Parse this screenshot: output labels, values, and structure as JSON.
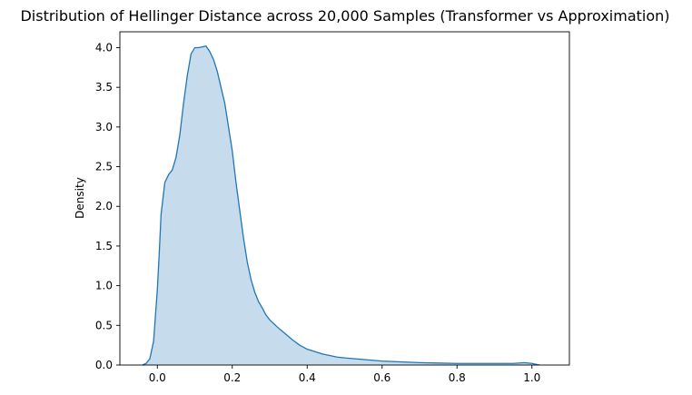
{
  "chart_data": {
    "type": "area",
    "title": "Distribution of Hellinger Distance across 20,000 Samples (Transformer vs Approximation)",
    "xlabel": "",
    "ylabel": "Density",
    "xlim": [
      -0.1,
      1.1
    ],
    "ylim": [
      0,
      4.2
    ],
    "x_ticks": [
      "0.0",
      "0.2",
      "0.4",
      "0.6",
      "0.8",
      "1.0"
    ],
    "y_ticks": [
      "0.0",
      "0.5",
      "1.0",
      "1.5",
      "2.0",
      "2.5",
      "3.0",
      "3.5",
      "4.0"
    ],
    "grid": false,
    "legend": "none",
    "colors": {
      "line": "#1f77b4",
      "fill": "#c6dbec"
    },
    "series": [
      {
        "x": [
          -0.04,
          -0.03,
          -0.02,
          -0.01,
          0.0,
          0.005,
          0.01,
          0.02,
          0.03,
          0.04,
          0.05,
          0.06,
          0.07,
          0.08,
          0.09,
          0.1,
          0.11,
          0.12,
          0.13,
          0.14,
          0.15,
          0.16,
          0.17,
          0.18,
          0.19,
          0.2,
          0.21,
          0.22,
          0.23,
          0.24,
          0.25,
          0.26,
          0.27,
          0.28,
          0.29,
          0.3,
          0.32,
          0.34,
          0.36,
          0.38,
          0.4,
          0.42,
          0.44,
          0.46,
          0.48,
          0.5,
          0.55,
          0.6,
          0.65,
          0.7,
          0.75,
          0.8,
          0.85,
          0.9,
          0.95,
          0.98,
          1.0,
          1.02
        ],
        "y": [
          0.0,
          0.02,
          0.08,
          0.3,
          0.95,
          1.4,
          1.9,
          2.3,
          2.4,
          2.46,
          2.62,
          2.9,
          3.3,
          3.65,
          3.92,
          4.0,
          4.0,
          4.01,
          4.02,
          3.95,
          3.85,
          3.7,
          3.5,
          3.3,
          3.0,
          2.7,
          2.3,
          1.95,
          1.6,
          1.3,
          1.08,
          0.92,
          0.8,
          0.72,
          0.63,
          0.57,
          0.48,
          0.4,
          0.32,
          0.25,
          0.2,
          0.17,
          0.14,
          0.12,
          0.1,
          0.09,
          0.07,
          0.05,
          0.04,
          0.03,
          0.025,
          0.02,
          0.02,
          0.02,
          0.02,
          0.03,
          0.02,
          0.0
        ]
      }
    ]
  }
}
